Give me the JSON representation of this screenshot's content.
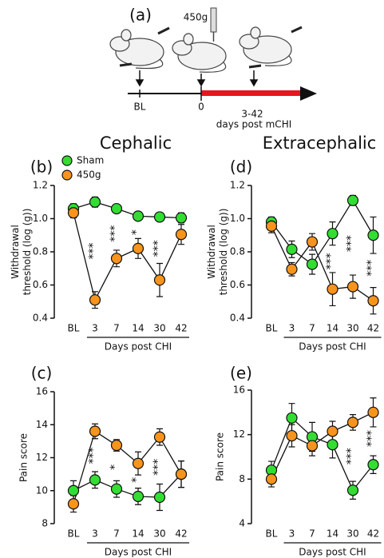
{
  "panel_a": {
    "label": "(a)",
    "weight": "450g",
    "timeline": [
      "BL",
      "0"
    ],
    "range": "3-42",
    "range_caption": "days post mCHI"
  },
  "headers": [
    "Cephalic",
    "Extracephalic"
  ],
  "chart_data": [
    {
      "type": "line",
      "panel_label": "(b)",
      "ylabel": [
        "Withdrawal",
        "threshold (log (g))"
      ],
      "xlabel": "Days post CHI",
      "categories": [
        "BL",
        "3",
        "7",
        "14",
        "30",
        "42"
      ],
      "ylim": [
        0.4,
        1.2
      ],
      "yticks": [
        0.4,
        0.6,
        0.8,
        {
          "value": 1,
          "label": "1.0"
        },
        1.2
      ],
      "legend": "upper left",
      "series": [
        {
          "name": "Sham",
          "color": "#33dd33",
          "values": [
            1.06,
            1.1,
            1.06,
            1.015,
            1.01,
            1.005
          ],
          "errors": [
            0.03,
            0.03,
            0.02,
            0.01,
            0.02,
            0.03
          ]
        },
        {
          "name": "450g",
          "color": "#f7941d",
          "values": [
            1.035,
            0.51,
            0.76,
            0.82,
            0.63,
            0.905
          ],
          "errors": [
            0.03,
            0.05,
            0.05,
            0.06,
            0.1,
            0.06
          ]
        }
      ],
      "annotations": [
        {
          "category": "3",
          "text": "***"
        },
        {
          "category": "7",
          "text": "***"
        },
        {
          "category": "14",
          "text": "*"
        },
        {
          "category": "30",
          "text": "***"
        }
      ]
    },
    {
      "type": "line",
      "panel_label": "(c)",
      "ylabel": [
        "Pain score"
      ],
      "xlabel": "Days post CHI",
      "categories": [
        "BL",
        "3",
        "7",
        "14",
        "30",
        "42"
      ],
      "ylim": [
        8,
        16
      ],
      "yticks": [
        8,
        10,
        12,
        14,
        16
      ],
      "series": [
        {
          "name": "Sham",
          "color": "#33dd33",
          "values": [
            10.0,
            10.65,
            10.1,
            9.65,
            9.6,
            11.0
          ],
          "errors": [
            0.6,
            0.5,
            0.5,
            0.5,
            0.8,
            0.8
          ]
        },
        {
          "name": "450g",
          "color": "#f7941d",
          "values": [
            9.2,
            13.6,
            12.75,
            11.65,
            13.25,
            11.0
          ],
          "errors": [
            0.5,
            0.45,
            0.35,
            0.7,
            0.5,
            0.8
          ]
        }
      ],
      "annotations": [
        {
          "category": "3",
          "text": "***"
        },
        {
          "category": "7",
          "text": "*"
        },
        {
          "category": "14",
          "text": "*"
        },
        {
          "category": "30",
          "text": "***"
        }
      ]
    },
    {
      "type": "line",
      "panel_label": "(d)",
      "ylabel": [
        "Withdrawal",
        "threshold (log (g))"
      ],
      "xlabel": "Days post CHI",
      "categories": [
        "BL",
        "3",
        "7",
        "14",
        "30",
        "42"
      ],
      "ylim": [
        0.4,
        1.2
      ],
      "yticks": [
        0.4,
        0.6,
        0.8,
        {
          "value": 1,
          "label": "1.0"
        },
        1.2
      ],
      "series": [
        {
          "name": "Sham",
          "color": "#33dd33",
          "values": [
            0.98,
            0.815,
            0.725,
            0.91,
            1.11,
            0.9
          ],
          "errors": [
            0.03,
            0.05,
            0.06,
            0.07,
            0.03,
            0.11
          ]
        },
        {
          "name": "450g",
          "color": "#f7941d",
          "values": [
            0.955,
            0.695,
            0.86,
            0.575,
            0.59,
            0.505
          ],
          "errors": [
            0.04,
            0.04,
            0.05,
            0.1,
            0.07,
            0.08
          ]
        }
      ],
      "annotations": [
        {
          "category": "14",
          "text": "***"
        },
        {
          "category": "30",
          "text": "***"
        },
        {
          "category": "42",
          "text": "***"
        }
      ]
    },
    {
      "type": "line",
      "panel_label": "(e)",
      "ylabel": [
        "Pain score"
      ],
      "xlabel": "Days post CHI",
      "categories": [
        "BL",
        "3",
        "7",
        "14",
        "30",
        "42"
      ],
      "ylim": [
        4,
        16
      ],
      "yticks": [
        4,
        8,
        12,
        16
      ],
      "series": [
        {
          "name": "Sham",
          "color": "#33dd33",
          "values": [
            8.8,
            13.5,
            11.8,
            11.1,
            7.0,
            9.3
          ],
          "errors": [
            0.8,
            1.3,
            1.3,
            1.2,
            0.8,
            0.8
          ]
        },
        {
          "name": "450g",
          "color": "#f7941d",
          "values": [
            8.0,
            11.9,
            11.0,
            12.3,
            13.1,
            14.0
          ],
          "errors": [
            0.7,
            1.0,
            0.9,
            0.9,
            0.7,
            1.3
          ]
        }
      ],
      "annotations": [
        {
          "category": "30",
          "text": "***"
        },
        {
          "category": "42",
          "text": "***"
        }
      ]
    }
  ]
}
